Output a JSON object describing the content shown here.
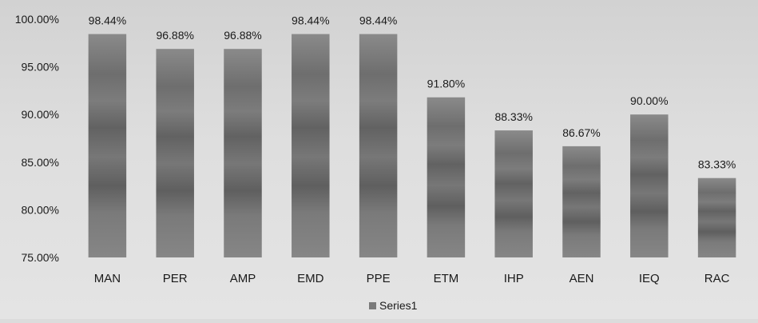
{
  "chart_data": {
    "type": "bar",
    "categories": [
      "MAN",
      "PER",
      "AMP",
      "EMD",
      "PPE",
      "ETM",
      "IHP",
      "AEN",
      "IEQ",
      "RAC"
    ],
    "series": [
      {
        "name": "Series1",
        "values": [
          98.44,
          96.88,
          96.88,
          98.44,
          98.44,
          91.8,
          88.33,
          86.67,
          90.0,
          83.33
        ],
        "labels": [
          "98.44%",
          "96.88%",
          "96.88%",
          "98.44%",
          "98.44%",
          "91.80%",
          "88.33%",
          "86.67%",
          "90.00%",
          "83.33%"
        ]
      }
    ],
    "yticks": [
      "75.00%",
      "80.00%",
      "85.00%",
      "90.00%",
      "95.00%",
      "100.00%"
    ],
    "ylim": [
      75,
      100
    ],
    "title": "",
    "xlabel": "",
    "ylabel": "",
    "grid": false,
    "legend": "bottom",
    "colors": {
      "bar": "#7a7a7a",
      "bar_dark": "#5e5e5e",
      "legend_swatch": "#7a7a7a",
      "text": "#1a1a1a"
    }
  }
}
